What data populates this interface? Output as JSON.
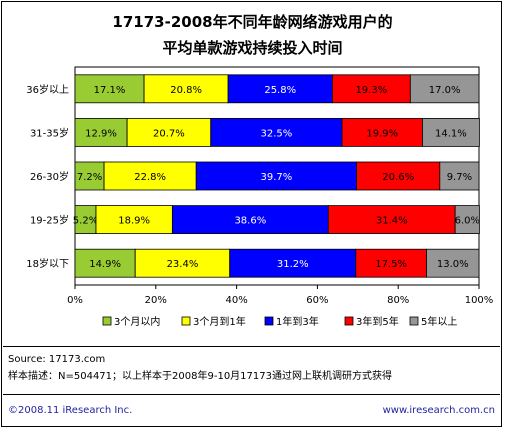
{
  "chart_data": {
    "type": "bar",
    "orientation": "horizontal",
    "stacked": true,
    "title_line1": "17173-2008年不同年龄网络游戏用户的",
    "title_line2": "平均单款游戏持续投入时间",
    "categories": [
      "36岁以上",
      "31-35岁",
      "26-30岁",
      "19-25岁",
      "18岁以下"
    ],
    "series": [
      {
        "name": "3个月以内",
        "color": "#99cc33",
        "values": [
          17.1,
          12.9,
          7.2,
          5.2,
          14.9
        ]
      },
      {
        "name": "3个月到1年",
        "color": "#ffff00",
        "values": [
          20.8,
          20.7,
          22.8,
          18.9,
          23.4
        ]
      },
      {
        "name": "1年到3年",
        "color": "#0000ff",
        "values": [
          25.8,
          32.5,
          39.7,
          38.6,
          31.2
        ]
      },
      {
        "name": "3年到5年",
        "color": "#ff0000",
        "values": [
          19.3,
          19.9,
          20.6,
          31.4,
          17.5
        ]
      },
      {
        "name": "5年以上",
        "color": "#969696",
        "values": [
          17.0,
          14.1,
          9.7,
          6.0,
          13.0
        ]
      }
    ],
    "xlim": [
      0,
      100
    ],
    "xticks": [
      "0%",
      "20%",
      "40%",
      "60%",
      "80%",
      "100%"
    ],
    "legend_position": "bottom",
    "grid": false
  },
  "source": "Source:  17173.com",
  "sample_note": "样本描述：N=504471；以上样本于2008年9-10月17173通过网上联机调研方式获得",
  "copyright": "©2008.11  iResearch Inc.",
  "website": "www.iresearch.com.cn"
}
